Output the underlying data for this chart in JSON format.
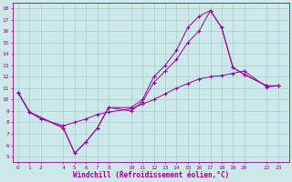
{
  "xlabel": "Windchill (Refroidissement éolien,°C)",
  "background_color": "#cce8e8",
  "line_color": "#990099",
  "grid_color": "#aad4d4",
  "line1_x": [
    0,
    1,
    4,
    5,
    6,
    7,
    8,
    10,
    11,
    12,
    13,
    14,
    15,
    16,
    17,
    18,
    19,
    20,
    22,
    23
  ],
  "line1_y": [
    10.6,
    8.9,
    7.5,
    5.3,
    6.3,
    7.5,
    9.3,
    9.3,
    10.0,
    12.0,
    13.0,
    14.3,
    16.3,
    17.3,
    17.8,
    16.3,
    12.8,
    12.2,
    11.2,
    11.2
  ],
  "line2_x": [
    0,
    1,
    4,
    5,
    6,
    7,
    8,
    10,
    11,
    12,
    13,
    14,
    15,
    16,
    17,
    18,
    19,
    20,
    22,
    23
  ],
  "line2_y": [
    10.6,
    8.9,
    7.5,
    5.3,
    6.3,
    7.5,
    9.3,
    9.0,
    9.8,
    11.5,
    12.5,
    13.5,
    15.0,
    16.0,
    17.8,
    16.3,
    12.8,
    12.2,
    11.2,
    11.2
  ],
  "line3_x": [
    0,
    1,
    2,
    4,
    5,
    6,
    7,
    8,
    10,
    11,
    12,
    13,
    14,
    15,
    16,
    17,
    18,
    19,
    20,
    22,
    23
  ],
  "line3_y": [
    10.6,
    8.9,
    8.3,
    7.7,
    8.0,
    8.3,
    8.7,
    8.9,
    9.2,
    9.6,
    10.0,
    10.5,
    11.0,
    11.4,
    11.8,
    12.0,
    12.1,
    12.3,
    12.5,
    11.1,
    11.2
  ],
  "xlim": [
    -0.5,
    24.0
  ],
  "ylim": [
    4.5,
    18.5
  ],
  "xticks": [
    0,
    1,
    2,
    4,
    5,
    6,
    7,
    8,
    10,
    11,
    12,
    13,
    14,
    15,
    16,
    17,
    18,
    19,
    20,
    22,
    23
  ],
  "yticks": [
    5,
    6,
    7,
    8,
    9,
    10,
    11,
    12,
    13,
    14,
    15,
    16,
    17,
    18
  ]
}
